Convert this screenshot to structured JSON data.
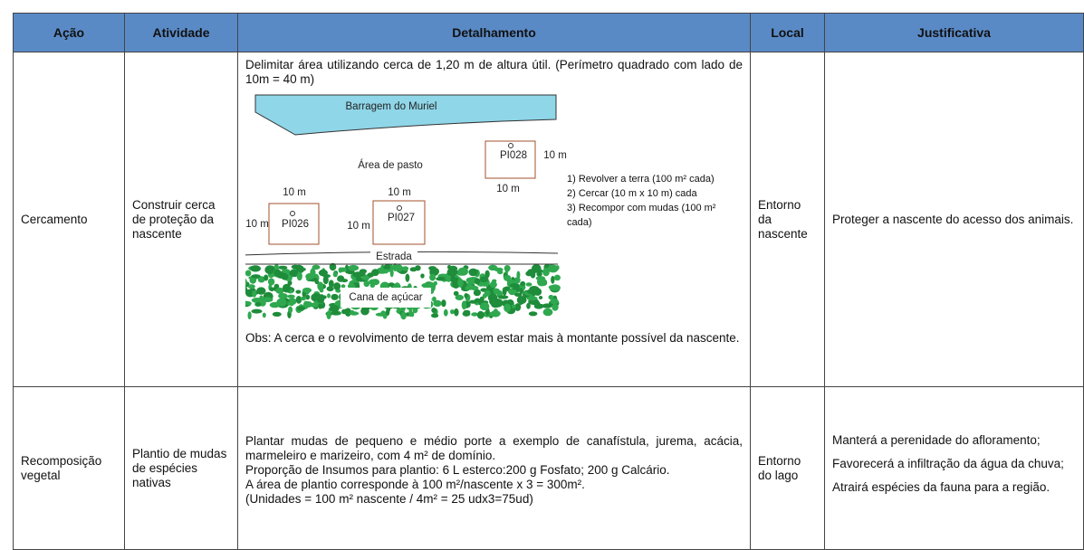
{
  "table": {
    "headers": [
      "Ação",
      "Atividade",
      "Detalhamento",
      "Local",
      "Justificativa"
    ],
    "rows": [
      {
        "acao": "Cercamento",
        "atividade": "Construir cerca de proteção da nascente",
        "detalhamento": {
          "intro": "Delimitar área utilizando cerca de 1,20 m de altura útil. (Perímetro quadrado com lado de 10m = 40 m)",
          "diagram": {
            "dam": "Barragem do Muriel",
            "pasture": "Área de pasto",
            "plots": [
              {
                "id": "PI028",
                "width": "10 m",
                "height": "10 m"
              },
              {
                "id": "PI026",
                "width": "10 m",
                "height": "10 m"
              },
              {
                "id": "PI027",
                "width": "10 m",
                "height": "10 m"
              }
            ],
            "steps": [
              "1) Revolver a terra (100 m² cada)",
              "2) Cercar (10 m x 10 m) cada",
              "3) Recompor com mudas (100 m² cada)"
            ],
            "road": "Estrada",
            "crop": "Cana de açúcar"
          },
          "obs": "Obs: A cerca e o revolvimento de terra devem estar mais à montante possível da nascente."
        },
        "local": "Entorno da nascente",
        "justificativa": [
          "Proteger a nascente do acesso dos animais."
        ]
      },
      {
        "acao": "Recomposição vegetal",
        "atividade": "Plantio de mudas de espécies nativas",
        "detalhamento": {
          "paragraphs": [
            "Plantar mudas de pequeno e médio porte a exemplo de canafístula, jurema, acácia, marmeleiro e marizeiro, com 4 m² de domínio.",
            "Proporção de Insumos para plantio: 6 L esterco:200 g Fosfato; 200 g Calcário.",
            "A área de plantio corresponde à 100 m²/nascente x 3 = 300m².",
            "(Unidades = 100 m² nascente / 4m² = 25 udx3=75ud)"
          ]
        },
        "local": "Entorno do lago",
        "justificativa": [
          "Manterá a perenidade do afloramento;",
          "Favorecerá a infiltração da água da chuva;",
          "Atrairá espécies da fauna para a região."
        ]
      }
    ]
  }
}
